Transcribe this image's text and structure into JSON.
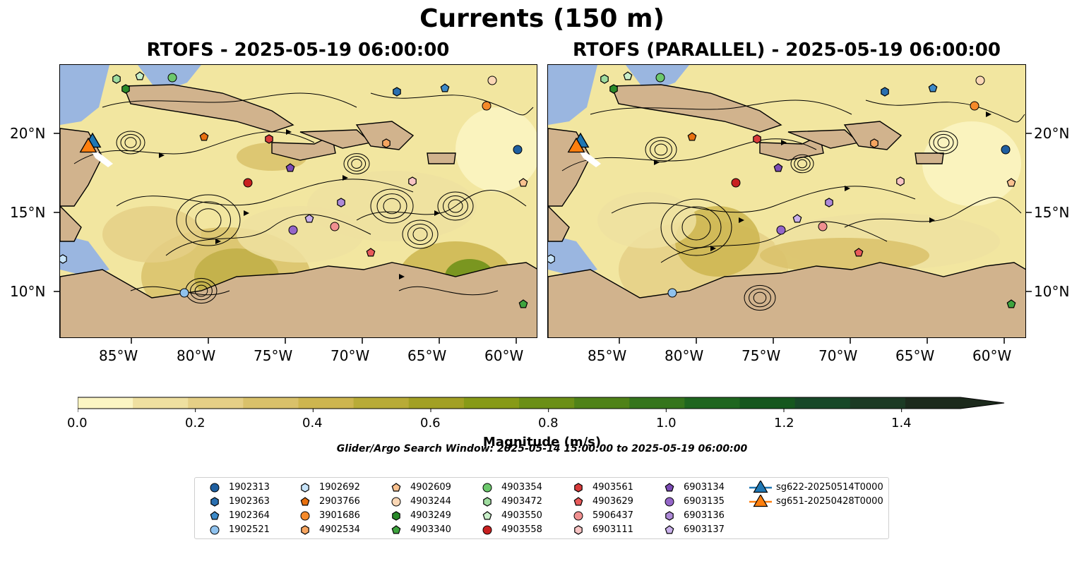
{
  "figure": {
    "suptitle": "Currents (150 m)",
    "left_title": "RTOFS - 2025-05-19 06:00:00",
    "right_title": "RTOFS (PARALLEL) - 2025-05-19 06:00:00",
    "search_window": "Glider/Argo Search Window: 2025-05-14 15:00:00 to 2025-05-19 06:00:00"
  },
  "axes": {
    "lon_ticks": [
      "85°W",
      "80°W",
      "75°W",
      "70°W",
      "65°W",
      "60°W"
    ],
    "lat_ticks": [
      "20°N",
      "15°N",
      "10°N"
    ]
  },
  "colorbar": {
    "label": "Magnitude (m/s)",
    "ticks": [
      "0.0",
      "0.2",
      "0.4",
      "0.6",
      "0.8",
      "1.0",
      "1.2",
      "1.4"
    ],
    "colors": [
      "#fbf5c3",
      "#efe0a0",
      "#e5cf86",
      "#d9c16a",
      "#cdb54f",
      "#b8ab37",
      "#a2a024",
      "#879a17",
      "#6b8f16",
      "#4f8218",
      "#35751c",
      "#1f661f",
      "#15571e",
      "#174828",
      "#1c3a24",
      "#1c2a1c"
    ]
  },
  "colors": {
    "land": "#d1b38d",
    "ocean": "#9ab6e0",
    "field_base": "#f2e6a0"
  },
  "legend": {
    "items": [
      {
        "label": "1902313",
        "marker": "circle",
        "color": "#1f5fa0"
      },
      {
        "label": "1902363",
        "marker": "hexagon",
        "color": "#2a6fb0"
      },
      {
        "label": "1902364",
        "marker": "pentagon",
        "color": "#3d8ac8"
      },
      {
        "label": "1902521",
        "marker": "circle",
        "color": "#8fc2ee"
      },
      {
        "label": "1902692",
        "marker": "hexagon",
        "color": "#c7e4fa"
      },
      {
        "label": "2903766",
        "marker": "pentagon",
        "color": "#e8700f"
      },
      {
        "label": "3901686",
        "marker": "circle",
        "color": "#f58a2a"
      },
      {
        "label": "4902534",
        "marker": "hexagon",
        "color": "#f6a560"
      },
      {
        "label": "4902609",
        "marker": "pentagon",
        "color": "#f9c18f"
      },
      {
        "label": "4903244",
        "marker": "circle",
        "color": "#fbd7b5"
      },
      {
        "label": "4903249",
        "marker": "hexagon",
        "color": "#2a8a2a"
      },
      {
        "label": "4903340",
        "marker": "pentagon",
        "color": "#3ea43e"
      },
      {
        "label": "4903354",
        "marker": "circle",
        "color": "#6cc86c"
      },
      {
        "label": "4903472",
        "marker": "hexagon",
        "color": "#9fdc9f"
      },
      {
        "label": "4903550",
        "marker": "pentagon",
        "color": "#c9efc9"
      },
      {
        "label": "4903558",
        "marker": "circle",
        "color": "#c82020"
      },
      {
        "label": "4903561",
        "marker": "hexagon",
        "color": "#d83a3a"
      },
      {
        "label": "4903629",
        "marker": "pentagon",
        "color": "#e85a5a"
      },
      {
        "label": "5906437",
        "marker": "circle",
        "color": "#f09090"
      },
      {
        "label": "6903111",
        "marker": "hexagon",
        "color": "#f8c4c4"
      },
      {
        "label": "6903134",
        "marker": "pentagon",
        "color": "#7b4bb5"
      },
      {
        "label": "6903135",
        "marker": "circle",
        "color": "#9466c8"
      },
      {
        "label": "6903136",
        "marker": "hexagon",
        "color": "#ae8ad8"
      },
      {
        "label": "6903137",
        "marker": "pentagon",
        "color": "#c9b0ea"
      },
      {
        "label": "sg622-20250514T0000",
        "marker": "triangle",
        "color": "#1f77b4"
      },
      {
        "label": "sg651-20250428T0000",
        "marker": "triangle",
        "color": "#ff7f0e"
      }
    ]
  }
}
